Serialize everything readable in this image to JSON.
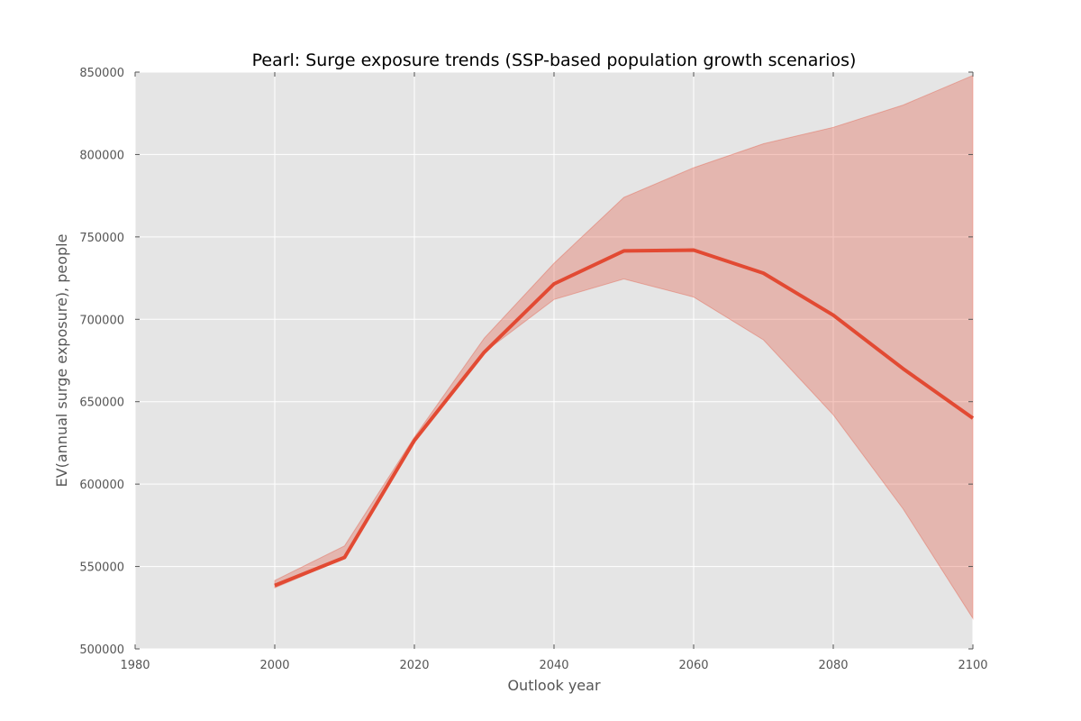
{
  "chart_data": {
    "type": "line",
    "title": "Pearl: Surge exposure trends (SSP-based population growth scenarios)",
    "xlabel": "Outlook year",
    "ylabel": "EV(annual surge exposure), people",
    "xlim": [
      1980,
      2100
    ],
    "ylim": [
      500000,
      850000
    ],
    "x_ticks": [
      1980,
      2000,
      2020,
      2040,
      2060,
      2080,
      2100
    ],
    "y_ticks": [
      500000,
      550000,
      600000,
      650000,
      700000,
      750000,
      800000,
      850000
    ],
    "grid": true,
    "x": [
      2000,
      2010,
      2020,
      2030,
      2040,
      2050,
      2060,
      2070,
      2080,
      2090,
      2100
    ],
    "series": [
      {
        "values": [
          538500,
          555500,
          626500,
          680000,
          721500,
          741500,
          742000,
          728000,
          702500,
          670000,
          640000
        ],
        "band_upper": [
          541500,
          562500,
          628500,
          688500,
          734000,
          774000,
          792000,
          806500,
          816500,
          830000,
          848000
        ],
        "band_lower": [
          537000,
          555000,
          625500,
          680000,
          712000,
          724500,
          713500,
          687500,
          642000,
          585000,
          518500
        ],
        "color": "#e24a33"
      }
    ],
    "colors": {
      "plot_background": "#e5e5e5",
      "band_fill": "#e24a33",
      "line": "#e24a33"
    }
  }
}
